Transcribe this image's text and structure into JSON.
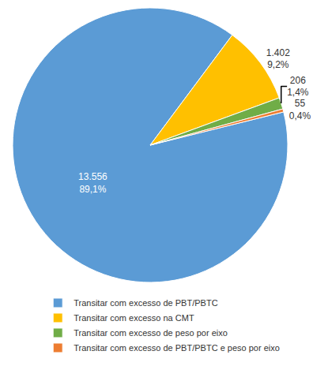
{
  "chart_data": {
    "type": "pie",
    "categories": [
      "Transitar com excesso de PBT/PBTC",
      "Transitar com excesso na CMT",
      "Transitar com excesso de peso por eixo",
      "Transitar com excesso de PBT/PBTC e peso por eixo"
    ],
    "values": [
      13556,
      1402,
      206,
      55
    ],
    "value_labels": [
      "13.556",
      "1.402",
      "206",
      "55"
    ],
    "percent": [
      89.1,
      9.2,
      1.4,
      0.4
    ],
    "percent_labels": [
      "89,1%",
      "9,2%",
      "1,4%",
      "0,4%"
    ],
    "colors": [
      "#5b9bd5",
      "#ffc000",
      "#70ad47",
      "#ed7d31"
    ],
    "data_labels": true,
    "legend": "bottom"
  }
}
